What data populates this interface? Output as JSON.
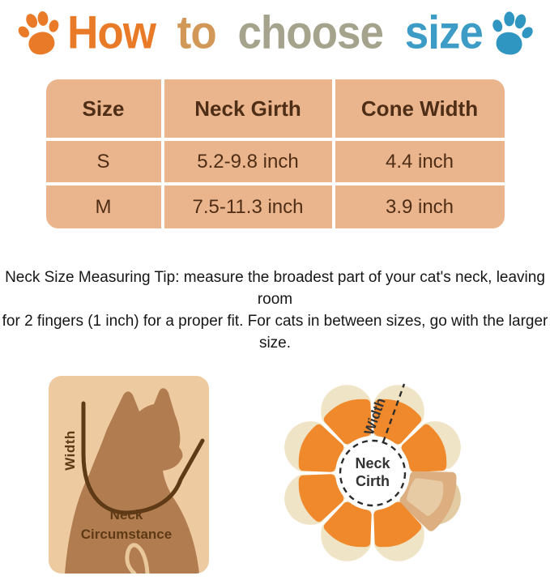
{
  "title": {
    "text": "How to choose size",
    "words": [
      {
        "label": "How",
        "color": "#E87A28"
      },
      {
        "label": "to",
        "color": "#D29858"
      },
      {
        "label": "choose",
        "color": "#A6A38D"
      },
      {
        "label": "size",
        "color": "#3D9CC6"
      }
    ]
  },
  "icons": {
    "left_paw": "paw-icon",
    "right_paw": "paw-icon"
  },
  "table": {
    "headers": [
      "Size",
      "Neck Girth",
      "Cone Width"
    ],
    "rows": [
      [
        "S",
        "5.2-9.8 inch",
        "4.4 inch"
      ],
      [
        "M",
        "7.5-11.3 inch",
        "3.9 inch"
      ]
    ]
  },
  "tip": {
    "lines": [
      "Neck Size Measuring Tip: measure the broadest part of your cat's neck, leaving room",
      "for 2 fingers (1 inch) for a proper fit. For cats in between sizes, go with the larger size."
    ]
  },
  "cat_diagram": {
    "width_label": "Width",
    "neck_label_lines": [
      "Neck",
      "Circumstance"
    ]
  },
  "cone_diagram": {
    "width_label": "Width",
    "center_lines": [
      "Neck",
      "Cirth"
    ]
  },
  "colors": {
    "title_how": "#E87A28",
    "title_to": "#D29858",
    "title_choose": "#A6A38D",
    "title_size": "#3D9CC6",
    "paw_left": "#E87A28",
    "paw_right": "#2F96C2",
    "table_bg": "#EAB58C",
    "table_text": "#4F2E17",
    "table_border": "#FFFFFF",
    "tip_text": "#161616",
    "cat_bg": "#EDCAA0",
    "cat_body": "#B17C4F",
    "cat_line": "#5E3A16",
    "cat_label": "#5E3A16",
    "cat_tail": "#E8C79B",
    "cone_petal": "#EFE4C6",
    "cone_petal_tan": "#E3CBA3",
    "cone_pad": "#F0892C",
    "cone_pad_tan": "#DCAE80",
    "cone_pad_tan_light": "#E7CBA4",
    "cone_dash": "#2B2B2B",
    "cone_label": "#333333"
  }
}
